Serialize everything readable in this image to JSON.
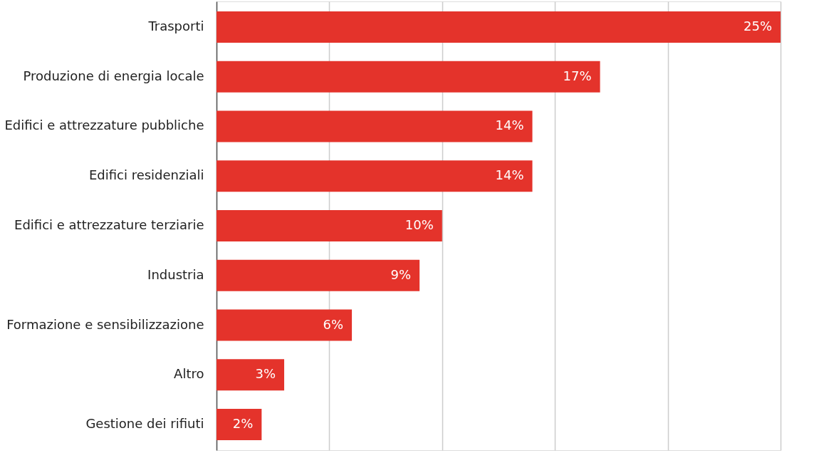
{
  "chart_data": {
    "type": "bar",
    "orientation": "horizontal",
    "categories": [
      "Trasporti",
      "Produzione di energia locale",
      "Edifici e attrezzature pubbliche",
      "Edifici residenziali",
      "Edifici e attrezzature terziarie",
      "Industria",
      "Formazione e sensibilizzazione",
      "Altro",
      "Gestione dei rifiuti"
    ],
    "values": [
      25,
      17,
      14,
      14,
      10,
      9,
      6,
      3,
      2
    ],
    "value_labels": [
      "25%",
      "17%",
      "14%",
      "14%",
      "10%",
      "9%",
      "6%",
      "3%",
      "2%"
    ],
    "color": "#e4332b",
    "xlim": [
      0,
      25
    ],
    "xticks": [
      {
        "value": 0,
        "label": null
      },
      {
        "value": 5,
        "label": null
      },
      {
        "value": 10,
        "label": null
      },
      {
        "value": 15,
        "label": null
      },
      {
        "value": 20,
        "label": null
      },
      {
        "value": 25,
        "label": null
      }
    ],
    "grid": "x",
    "tick_labels": "y"
  }
}
